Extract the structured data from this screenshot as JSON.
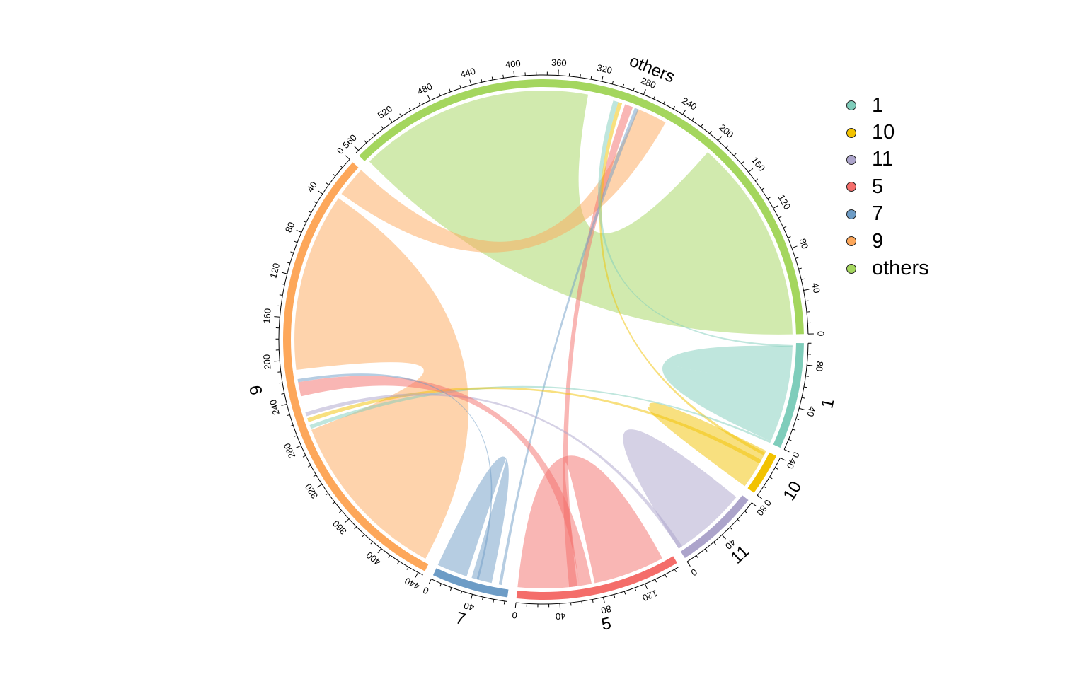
{
  "chart_data": {
    "type": "chord",
    "title": "",
    "sectors": [
      {
        "name": "1",
        "color": "#7fcdbb",
        "total": 100,
        "ticks": [
          0,
          40,
          80
        ]
      },
      {
        "name": "10",
        "color": "#f2c200",
        "total": 40,
        "ticks": [
          0,
          40
        ]
      },
      {
        "name": "11",
        "color": "#aca4cb",
        "total": 80,
        "ticks": [
          0,
          40,
          80
        ]
      },
      {
        "name": "5",
        "color": "#f46d6a",
        "total": 155,
        "ticks": [
          0,
          40,
          80,
          120
        ]
      },
      {
        "name": "7",
        "color": "#6d9cc6",
        "total": 72,
        "ticks": [
          0,
          40
        ]
      },
      {
        "name": "9",
        "color": "#fda75a",
        "total": 445,
        "ticks": [
          0,
          40,
          80,
          120,
          160,
          200,
          240,
          280,
          320,
          360,
          400,
          440
        ]
      },
      {
        "name": "others",
        "color": "#a4d65e",
        "total": 563,
        "ticks": [
          0,
          40,
          80,
          120,
          160,
          200,
          240,
          280,
          320,
          360,
          400,
          440,
          480,
          520,
          560
        ]
      }
    ],
    "links": [
      {
        "from": "others",
        "from_range": [
          0,
          200
        ],
        "to": "others",
        "to_range": [
          330,
          560
        ],
        "color": "#a4d65e"
      },
      {
        "from": "9",
        "from_range": [
          270,
          440
        ],
        "to": "9",
        "to_range": [
          35,
          210
        ],
        "color": "#fda75a"
      },
      {
        "from": "others",
        "from_range": [
          250,
          280
        ],
        "to": "9",
        "to_range": [
          0,
          30
        ],
        "color": "#fda75a"
      },
      {
        "from": "1",
        "from_range": [
          2,
          55
        ],
        "to": "1",
        "to_range": [
          55,
          97
        ],
        "color": "#7fcdbb"
      },
      {
        "from": "10",
        "from_range": [
          0,
          40
        ],
        "to": "10",
        "to_range": [
          0,
          25
        ],
        "color": "#f2c200"
      },
      {
        "from": "11",
        "from_range": [
          20,
          75
        ],
        "to": "11",
        "to_range": [
          0,
          40
        ],
        "color": "#aca4cb"
      },
      {
        "from": "5",
        "from_range": [
          0,
          60
        ],
        "to": "5",
        "to_range": [
          75,
          145
        ],
        "color": "#f46d6a"
      },
      {
        "from": "7",
        "from_range": [
          0,
          30
        ],
        "to": "7",
        "to_range": [
          35,
          55
        ],
        "color": "#6d9cc6"
      },
      {
        "from": "others",
        "from_range": [
          285,
          293
        ],
        "to": "5",
        "to_range": [
          50,
          58
        ],
        "color": "#f46d6a"
      },
      {
        "from": "others",
        "from_range": [
          279,
          283
        ],
        "to": "7",
        "to_range": [
          62,
          65
        ],
        "color": "#6d9cc6"
      },
      {
        "from": "others",
        "from_range": [
          296,
          300
        ],
        "to": "10",
        "to_range": [
          35,
          38
        ],
        "color": "#f2c200"
      },
      {
        "from": "others",
        "from_range": [
          300,
          305
        ],
        "to": "1",
        "to_range": [
          96,
          98
        ],
        "color": "#7fcdbb"
      },
      {
        "from": "9",
        "from_range": [
          265,
          269
        ],
        "to": "1",
        "to_range": [
          0,
          2
        ],
        "color": "#7fcdbb"
      },
      {
        "from": "9",
        "from_range": [
          258,
          262
        ],
        "to": "10",
        "to_range": [
          26,
          30
        ],
        "color": "#f2c200"
      },
      {
        "from": "9",
        "from_range": [
          252,
          256
        ],
        "to": "11",
        "to_range": [
          0,
          4
        ],
        "color": "#aca4cb"
      },
      {
        "from": "9",
        "from_range": [
          222,
          236
        ],
        "to": "5",
        "to_range": [
          60,
          72
        ],
        "color": "#f46d6a"
      },
      {
        "from": "9",
        "from_range": [
          219,
          222
        ],
        "to": "7",
        "to_range": [
          40,
          42
        ],
        "color": "#6d9cc6"
      }
    ]
  },
  "legend": {
    "items": [
      {
        "label": "1",
        "color": "#7fcdbb"
      },
      {
        "label": "10",
        "color": "#f2c200"
      },
      {
        "label": "11",
        "color": "#aca4cb"
      },
      {
        "label": "5",
        "color": "#f46d6a"
      },
      {
        "label": "7",
        "color": "#6d9cc6"
      },
      {
        "label": "9",
        "color": "#fda75a"
      },
      {
        "label": "others",
        "color": "#a4d65e"
      }
    ]
  }
}
